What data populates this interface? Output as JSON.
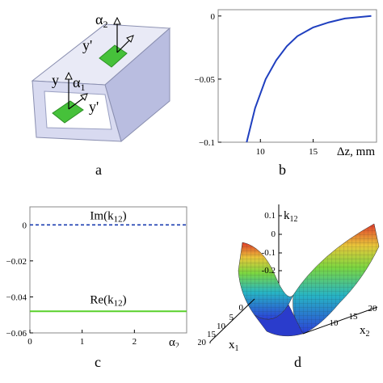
{
  "panels": {
    "a": {
      "caption": "a",
      "labels": {
        "alpha2": "α",
        "alpha2_sub": "2",
        "yprime_top": "y'",
        "y": "y",
        "alpha1": "α",
        "alpha1_sub": "1",
        "yprime_bottom": "y'"
      }
    },
    "b": {
      "caption": "b",
      "xlabel": "Δz, mm",
      "xticks": [
        "10",
        "15"
      ],
      "yticks": [
        "0",
        "−0.05",
        "−0.1"
      ]
    },
    "c": {
      "caption": "c",
      "xlabel_main": "α",
      "xlabel_sub": "2",
      "xticks": [
        "0",
        "1",
        "2"
      ],
      "yticks": [
        "0",
        "−0.02",
        "−0.04",
        "−0.06"
      ],
      "im_label": "Im(k",
      "im_sub": "12",
      "im_close": ")",
      "re_label": "Re(k",
      "re_sub": "12",
      "re_close": ")"
    },
    "d": {
      "caption": "d",
      "zlabel": "k",
      "zlabel_sub": "12",
      "zticks": [
        "0.1",
        "0",
        "-0.1",
        "-0.2"
      ],
      "x1ticks": [
        "0",
        "5",
        "10",
        "15",
        "20"
      ],
      "x2ticks": [
        "20",
        "15",
        "10"
      ],
      "x1label": "x",
      "x1sub": "1",
      "x2label": "x",
      "x2sub": "2"
    }
  },
  "colors": {
    "curve": "#1f3fbf",
    "im_line": "#1a3cb0",
    "re_line": "#59d02a",
    "green": "#4cc23a",
    "box": "#cfd3ee"
  },
  "chart_data": [
    {
      "type": "line",
      "panel": "b",
      "xlabel": "Δz, mm",
      "xlim": [
        6,
        21
      ],
      "ylim": [
        -0.1,
        0.005
      ],
      "series": [
        {
          "x": [
            8.7,
            9.5,
            10.5,
            11.5,
            12.5,
            13.5,
            15,
            16.5,
            18,
            20.5
          ],
          "y": [
            -0.1,
            -0.073,
            -0.05,
            -0.035,
            -0.024,
            -0.016,
            -0.009,
            -0.005,
            -0.002,
            0.0
          ]
        }
      ]
    },
    {
      "type": "line",
      "panel": "c",
      "xlim": [
        0,
        3
      ],
      "ylim": [
        -0.06,
        0.01
      ],
      "series": [
        {
          "name": "Im(k12)",
          "x": [
            0,
            3
          ],
          "y": [
            0,
            0
          ],
          "style": "dashed"
        },
        {
          "name": "Re(k12)",
          "x": [
            0,
            3
          ],
          "y": [
            -0.048,
            -0.048
          ],
          "style": "solid"
        }
      ]
    }
  ]
}
